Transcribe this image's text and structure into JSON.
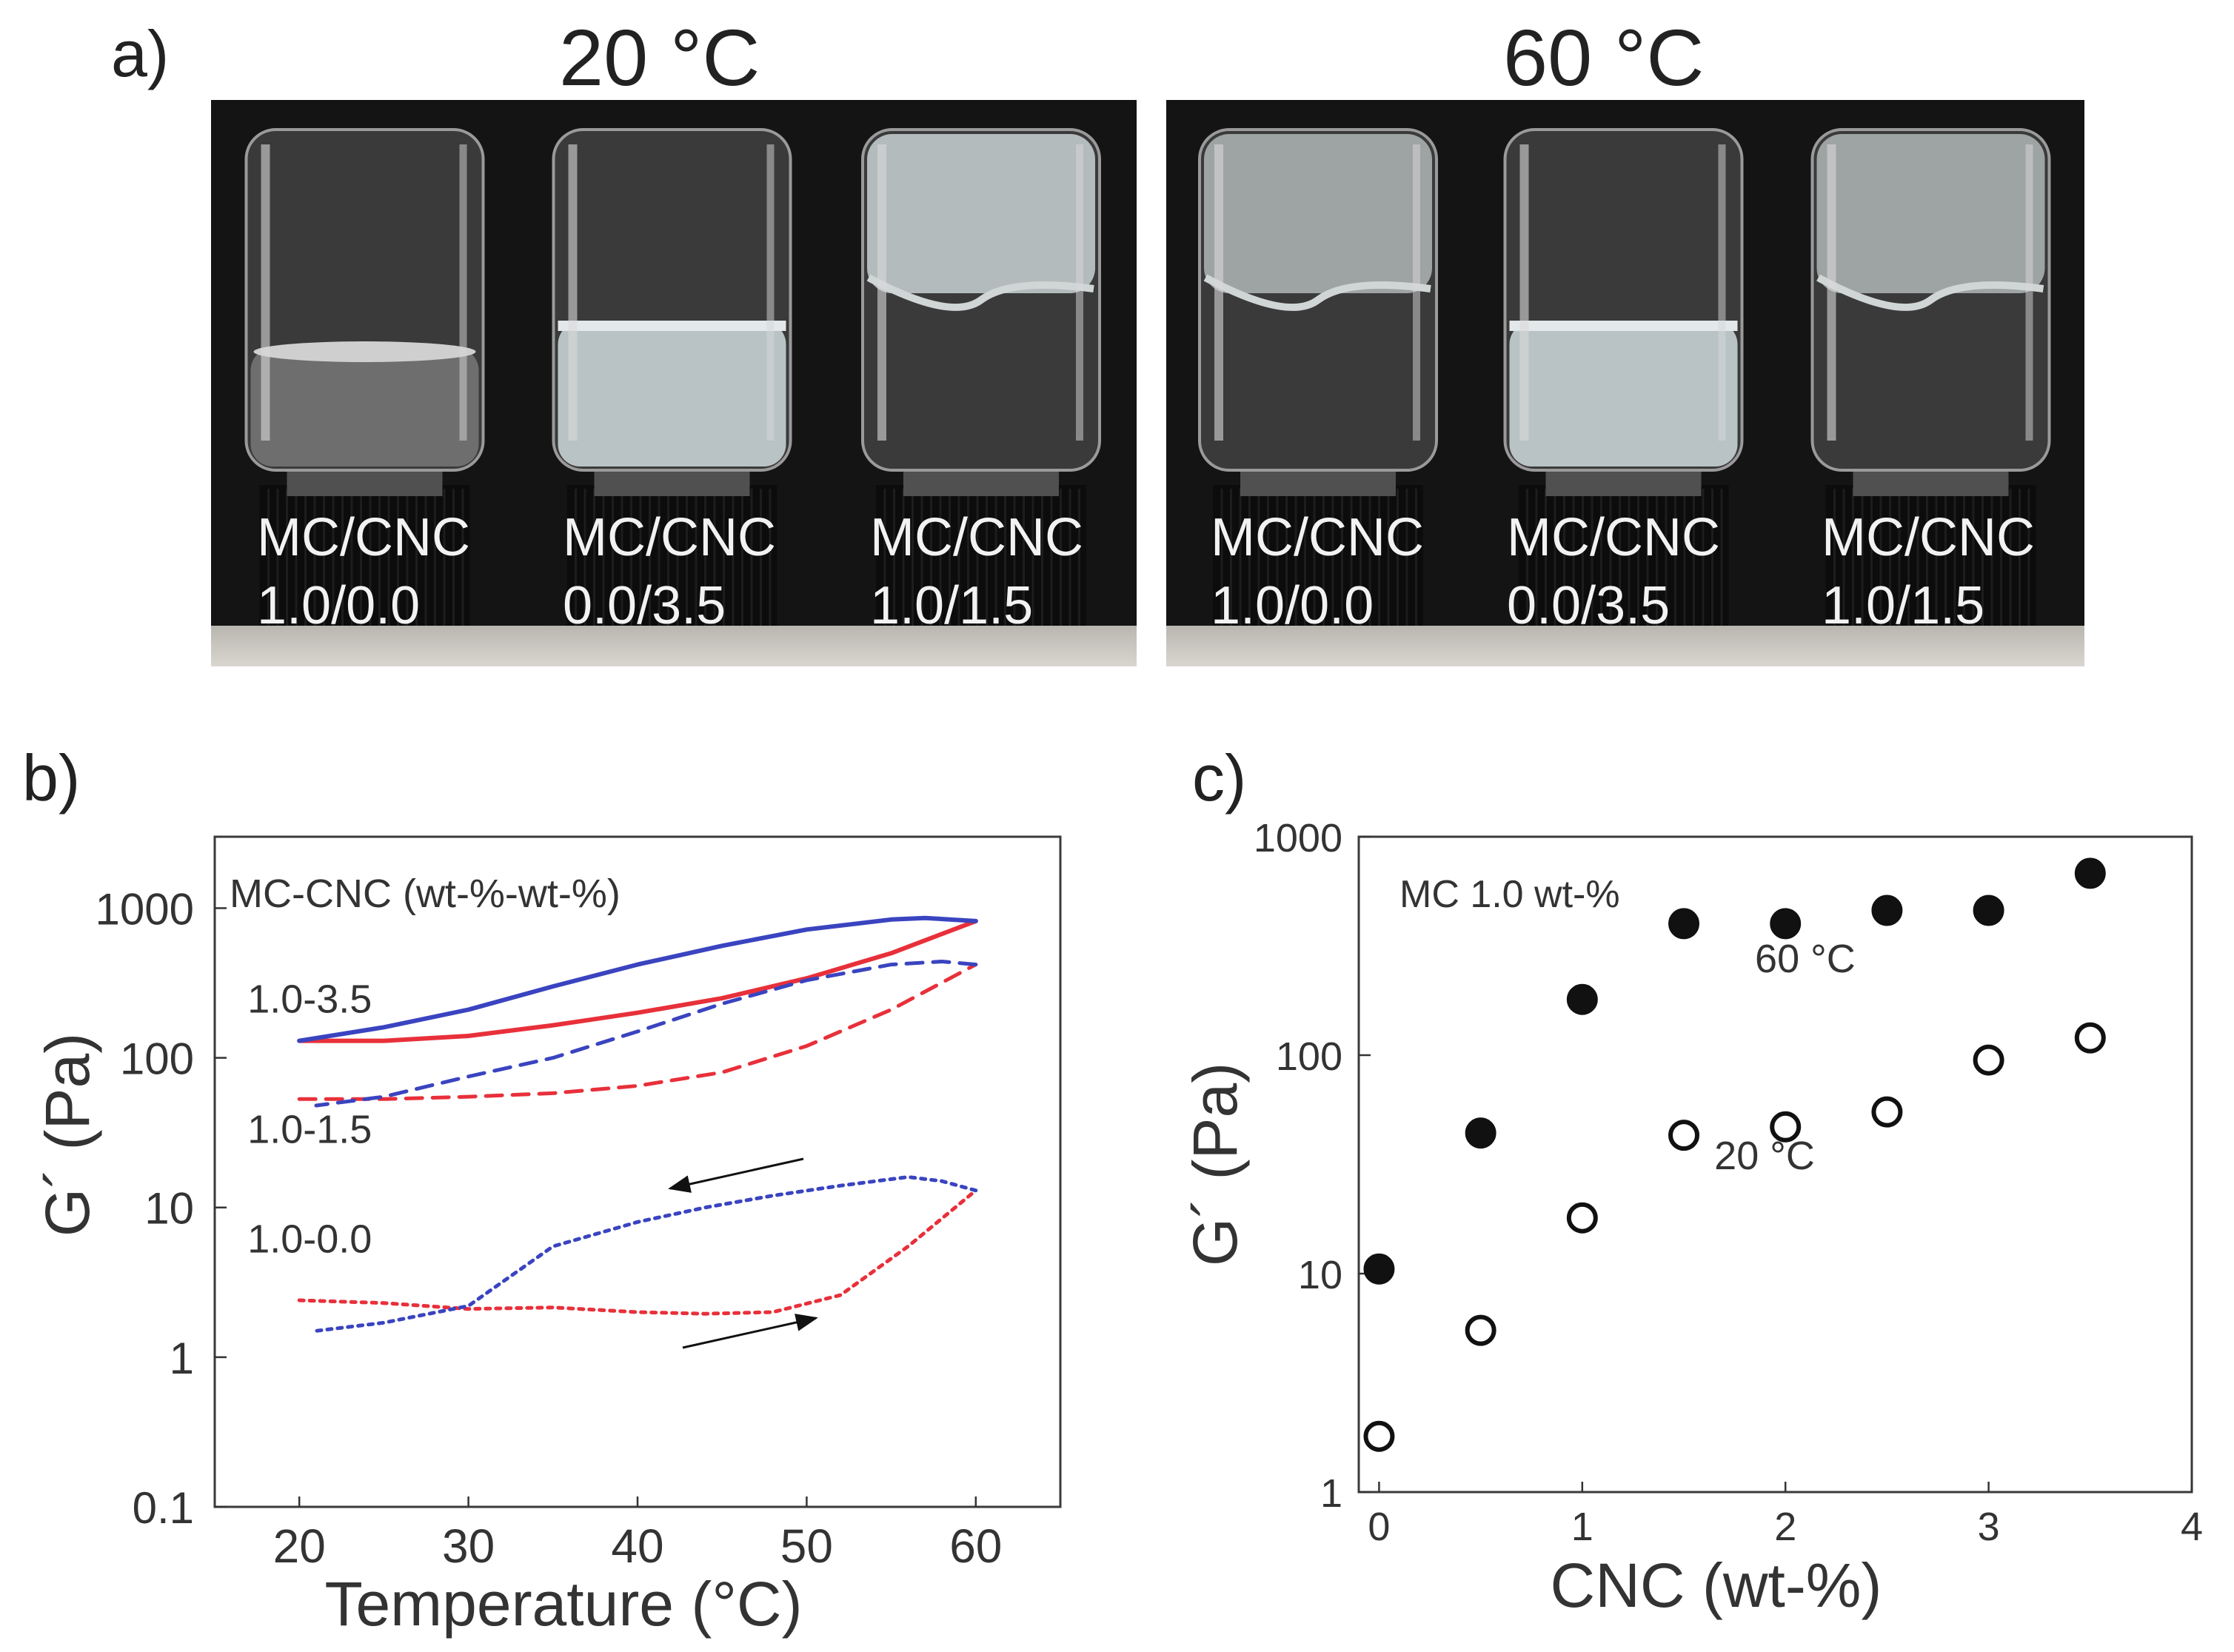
{
  "panels": {
    "a": {
      "label": "a)",
      "titles": [
        "20 °C",
        "60 °C"
      ],
      "vials": [
        {
          "line1": "MC/CNC",
          "line2": "1.0/0.0",
          "kind": "clear-low"
        },
        {
          "line1": "MC/CNC",
          "line2": "0.0/3.5",
          "kind": "milky-low"
        },
        {
          "line1": "MC/CNC",
          "line2": "1.0/1.5",
          "kind": "gel-top"
        },
        {
          "line1": "MC/CNC",
          "line2": "1.0/0.0",
          "kind": "gel-top-hazy"
        },
        {
          "line1": "MC/CNC",
          "line2": "0.0/3.5",
          "kind": "milky-low"
        },
        {
          "line1": "MC/CNC",
          "line2": "1.0/1.5",
          "kind": "gel-top-hazy"
        }
      ]
    },
    "b": {
      "label": "b)"
    },
    "c": {
      "label": "c)"
    }
  },
  "chart_data": [
    {
      "type": "line",
      "panel": "b",
      "xlabel": "Temperature  (°C)",
      "ylabel": "G´  (Pa)",
      "legend_title": "MC-CNC  (wt-%-wt-%)",
      "yscale": "log",
      "xlim": [
        15,
        65
      ],
      "ylim": [
        0.1,
        3000
      ],
      "xticks": [
        20,
        30,
        40,
        50,
        60
      ],
      "yticks": [
        0.1,
        1,
        10,
        100,
        1000
      ],
      "ytick_labels": [
        "0.1",
        "1",
        "10",
        "100",
        "1000"
      ],
      "colors": {
        "heating": "#e8303a",
        "cooling": "#3a44c0"
      },
      "series": [
        {
          "name": "1.0-3.5 heating",
          "group": "1.0-3.5",
          "direction": "heating",
          "style": "solid",
          "x": [
            20,
            25,
            30,
            35,
            40,
            45,
            50,
            55,
            60
          ],
          "y": [
            130,
            130,
            140,
            165,
            200,
            250,
            340,
            500,
            820
          ]
        },
        {
          "name": "1.0-3.5 cooling",
          "group": "1.0-3.5",
          "direction": "cooling",
          "style": "solid",
          "x": [
            60,
            57,
            55,
            50,
            45,
            40,
            35,
            30,
            25,
            20
          ],
          "y": [
            820,
            860,
            840,
            720,
            560,
            420,
            300,
            210,
            160,
            130
          ]
        },
        {
          "name": "1.0-1.5 heating",
          "group": "1.0-1.5",
          "direction": "heating",
          "style": "dashed",
          "x": [
            20,
            25,
            30,
            35,
            40,
            45,
            50,
            55,
            60
          ],
          "y": [
            53,
            53,
            55,
            58,
            65,
            80,
            120,
            210,
            420
          ]
        },
        {
          "name": "1.0-1.5 cooling",
          "group": "1.0-1.5",
          "direction": "cooling",
          "style": "dashed",
          "x": [
            60,
            58,
            55,
            50,
            45,
            40,
            35,
            30,
            25,
            21
          ],
          "y": [
            420,
            440,
            420,
            330,
            230,
            150,
            100,
            75,
            55,
            48
          ]
        },
        {
          "name": "1.0-0.0 heating",
          "group": "1.0-0.0",
          "direction": "heating",
          "style": "dotted",
          "x": [
            20,
            25,
            30,
            35,
            40,
            44,
            48,
            52,
            56,
            60
          ],
          "y": [
            2.4,
            2.3,
            2.1,
            2.15,
            2.0,
            1.95,
            2.0,
            2.6,
            5.5,
            13
          ]
        },
        {
          "name": "1.0-0.0 cooling",
          "group": "1.0-0.0",
          "direction": "cooling",
          "style": "dotted",
          "x": [
            60,
            58,
            56,
            52,
            48,
            44,
            40,
            35,
            30,
            25,
            21
          ],
          "y": [
            13,
            15,
            16,
            14,
            12,
            10,
            8,
            5.5,
            2.2,
            1.7,
            1.5
          ]
        }
      ],
      "series_labels": [
        {
          "text": "1.0-3.5",
          "x": 20,
          "y": 200
        },
        {
          "text": "1.0-1.5",
          "x": 20,
          "y": 27
        },
        {
          "text": "1.0-0.0",
          "x": 20,
          "y": 5
        }
      ]
    },
    {
      "type": "scatter",
      "panel": "c",
      "xlabel": "CNC  (wt-%)",
      "ylabel": "G´  (Pa)",
      "annotation": "MC 1.0 wt-%",
      "yscale": "log",
      "xlim": [
        -0.1,
        4
      ],
      "ylim": [
        1,
        1000
      ],
      "xticks": [
        0,
        1,
        2,
        3,
        4
      ],
      "yticks": [
        1,
        10,
        100,
        1000
      ],
      "ytick_labels": [
        "1",
        "10",
        "100",
        "1000"
      ],
      "series": [
        {
          "name": "60 °C",
          "marker": "filled",
          "x": [
            0,
            0.5,
            1,
            1.5,
            2,
            2.5,
            3,
            3.5
          ],
          "y": [
            10.5,
            44,
            180,
            400,
            400,
            460,
            460,
            680
          ]
        },
        {
          "name": "20 °C",
          "marker": "open",
          "x": [
            0,
            0.5,
            1,
            1.5,
            2,
            2.5,
            3,
            3.5
          ],
          "y": [
            1.8,
            5.5,
            18,
            43,
            47,
            55,
            95,
            120
          ]
        }
      ],
      "series_labels": [
        {
          "text": "60 °C",
          "x": 1.85,
          "y": 240
        },
        {
          "text": "20 °C",
          "x": 1.65,
          "y": 30
        }
      ]
    }
  ]
}
